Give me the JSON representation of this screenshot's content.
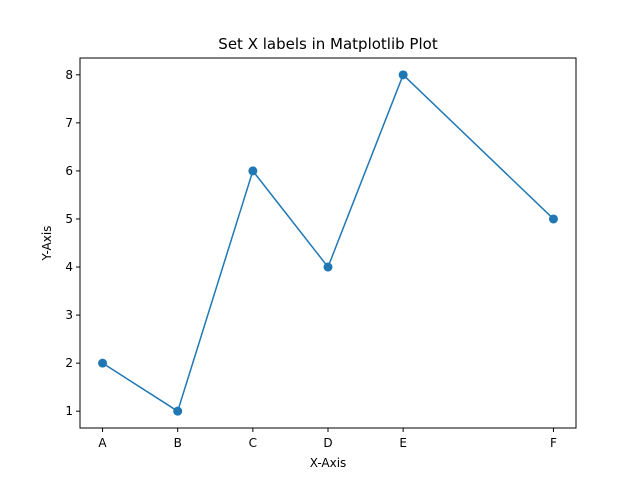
{
  "chart_data": {
    "type": "line",
    "title": "Set X labels in Matplotlib Plot",
    "xlabel": "X-Axis",
    "ylabel": "Y-Axis",
    "x": [
      1,
      2,
      3,
      4,
      5,
      7
    ],
    "x_tick_labels": [
      "A",
      "B",
      "C",
      "D",
      "E",
      "F"
    ],
    "y_ticks": [
      "1",
      "2",
      "3",
      "4",
      "5",
      "6",
      "7",
      "8"
    ],
    "series": [
      {
        "values": [
          2,
          1,
          6,
          4,
          8,
          5
        ],
        "color": "#1f77b4",
        "marker": "circle"
      }
    ],
    "xlim": [
      0.7,
      7.3
    ],
    "ylim": [
      0.65,
      8.35
    ],
    "grid": false,
    "legend": false
  }
}
